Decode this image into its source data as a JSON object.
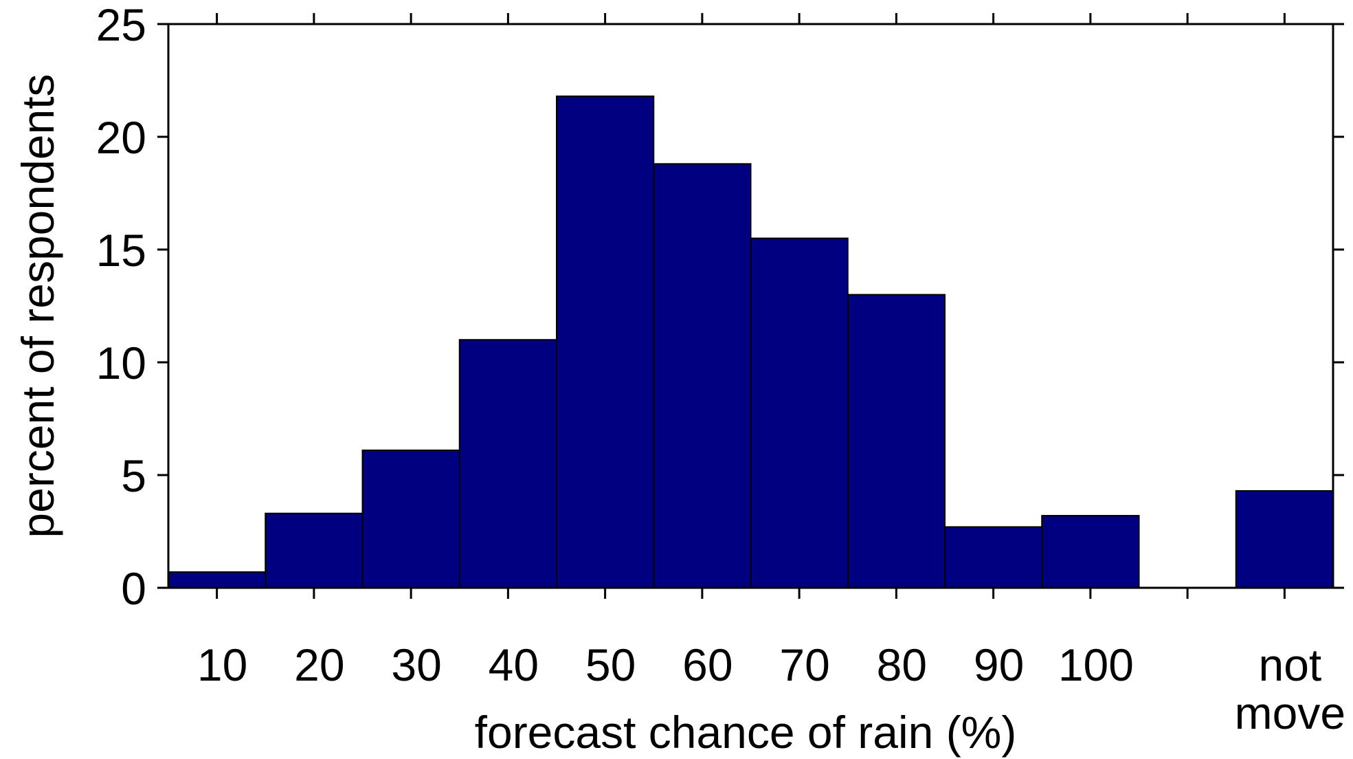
{
  "chart_data": {
    "type": "bar",
    "title": "",
    "xlabel": "forecast chance of rain (%)",
    "ylabel": "percent of respondents",
    "ylim": [
      0,
      25
    ],
    "yticks": [
      "0",
      "5",
      "10",
      "15",
      "20",
      "25"
    ],
    "categories": [
      "10",
      "20",
      "30",
      "40",
      "50",
      "60",
      "70",
      "80",
      "90",
      "100",
      "",
      "not move"
    ],
    "category_label_lines": [
      [
        "10"
      ],
      [
        "20"
      ],
      [
        "30"
      ],
      [
        "40"
      ],
      [
        "50"
      ],
      [
        "60"
      ],
      [
        "70"
      ],
      [
        "80"
      ],
      [
        "90"
      ],
      [
        "100"
      ],
      [],
      [
        "not",
        "move"
      ]
    ],
    "values": [
      0.7,
      3.3,
      6.1,
      11.0,
      21.8,
      18.8,
      15.5,
      13.0,
      2.7,
      3.2,
      0,
      4.3
    ],
    "grid": false,
    "legend": "none",
    "bar_color": "#000080",
    "edge_color": "#000000"
  }
}
